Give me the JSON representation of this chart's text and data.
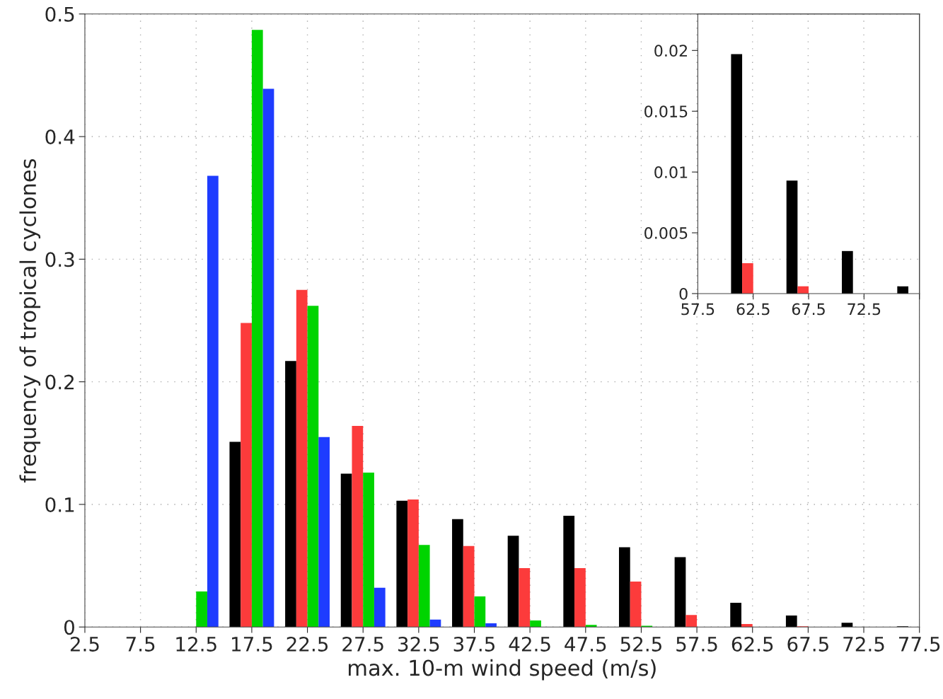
{
  "chart_data": [
    {
      "type": "bar",
      "xlabel": "max. 10-m wind speed (m/s)",
      "ylabel": "frequency of tropical cyclones",
      "x": [
        12.5,
        17.5,
        22.5,
        27.5,
        32.5,
        37.5,
        42.5,
        47.5,
        52.5,
        57.5,
        62.5,
        67.5,
        72.5,
        77.5
      ],
      "series": [
        {
          "color": "#000000",
          "values": [
            0,
            0.151,
            0.217,
            0.125,
            0.103,
            0.088,
            0.0745,
            0.0907,
            0.065,
            0.057,
            0.0197,
            0.0093,
            0.0035,
            0.0006
          ]
        },
        {
          "color": "#fc3b3b",
          "values": [
            0,
            0.248,
            0.275,
            0.164,
            0.104,
            0.066,
            0.048,
            0.048,
            0.037,
            0.0098,
            0.0025,
            0.0006,
            0,
            0
          ]
        },
        {
          "color": "#00d400",
          "values": [
            0.029,
            0.487,
            0.262,
            0.126,
            0.067,
            0.025,
            0.0054,
            0.0017,
            0.001,
            0,
            0,
            0,
            0,
            0
          ]
        },
        {
          "color": "#1e3cff",
          "values": [
            0.368,
            0.439,
            0.155,
            0.032,
            0.006,
            0.003,
            0,
            0,
            0,
            0,
            0,
            0,
            0,
            0
          ]
        }
      ],
      "xlim": [
        2.5,
        77.5
      ],
      "xticks": [
        2.5,
        7.5,
        12.5,
        17.5,
        22.5,
        27.5,
        32.5,
        37.5,
        42.5,
        47.5,
        52.5,
        57.5,
        62.5,
        67.5,
        72.5,
        77.5
      ],
      "ylim": [
        0,
        0.5
      ],
      "yticks": [
        0,
        0.1,
        0.2,
        0.3,
        0.4,
        0.5
      ],
      "grid": true
    },
    {
      "type": "bar",
      "x": [
        62.5,
        67.5,
        72.5,
        77.5
      ],
      "series": [
        {
          "color": "#000000",
          "values": [
            0.0197,
            0.0093,
            0.0035,
            0.0006
          ]
        },
        {
          "color": "#fc3b3b",
          "values": [
            0.0025,
            0.0006,
            0,
            0
          ]
        },
        {
          "color": "#00d400",
          "values": [
            0,
            0,
            0,
            0
          ]
        },
        {
          "color": "#1e3cff",
          "values": [
            0,
            0,
            0,
            0
          ]
        }
      ],
      "xlim": [
        57.5,
        77.5
      ],
      "xticks": [
        57.5,
        62.5,
        67.5,
        72.5,
        {
          "value": 77.5,
          "label": null
        }
      ],
      "ylim": [
        0,
        0.023
      ],
      "yticks": [
        0,
        0.005,
        0.01,
        0.015,
        0.02
      ],
      "grid": false
    }
  ]
}
